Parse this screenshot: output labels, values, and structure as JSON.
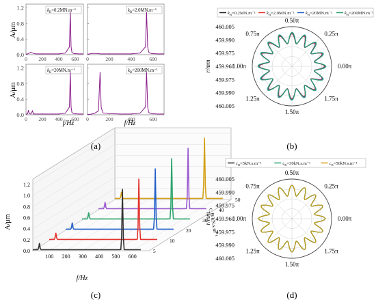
{
  "captions": {
    "a": "(a)",
    "b": "(b)",
    "c": "(c)",
    "d": "(d)"
  },
  "chart_data": [
    {
      "id": "a",
      "type": "line",
      "layout": "2x2 small multiples",
      "xlabel": "f/Hz",
      "ylabel": "A/μm",
      "xticks": [
        "0",
        "200",
        "400",
        "600"
      ],
      "yticks": [
        "0.0",
        "0.4",
        "0.8",
        "1.2"
      ],
      "xlim": [
        0,
        700
      ],
      "ylim": [
        0,
        1.3
      ],
      "color": "#8a1a8a",
      "panels": [
        {
          "label": "k_B=0.2MN.m⁻¹",
          "x": [
            0,
            20,
            40,
            60,
            80,
            120,
            200,
            300,
            400,
            480,
            530,
            540,
            550,
            560,
            580,
            640,
            700
          ],
          "y": [
            0.01,
            0.02,
            0.04,
            0.06,
            0.04,
            0.02,
            0.02,
            0.02,
            0.02,
            0.04,
            0.2,
            1.1,
            0.2,
            0.06,
            0.03,
            0.02,
            0.02
          ]
        },
        {
          "label": "k_B=2.0MN.m⁻¹",
          "x": [
            0,
            20,
            40,
            60,
            80,
            120,
            200,
            300,
            400,
            480,
            530,
            540,
            550,
            560,
            580,
            640,
            700
          ],
          "y": [
            0.01,
            0.02,
            0.03,
            0.03,
            0.03,
            0.02,
            0.02,
            0.02,
            0.02,
            0.04,
            0.2,
            1.1,
            0.2,
            0.06,
            0.03,
            0.02,
            0.02
          ]
        },
        {
          "label": "k_B=20MN.m⁻¹",
          "x": [
            0,
            20,
            30,
            40,
            60,
            80,
            90,
            120,
            200,
            300,
            400,
            480,
            530,
            540,
            550,
            560,
            580,
            640,
            700
          ],
          "y": [
            0.01,
            0.03,
            0.12,
            0.03,
            0.02,
            0.1,
            0.02,
            0.02,
            0.02,
            0.02,
            0.02,
            0.04,
            0.2,
            1.1,
            0.2,
            0.06,
            0.03,
            0.02,
            0.02
          ]
        },
        {
          "label": "k_B=200MN.m⁻¹",
          "x": [
            0,
            20,
            60,
            100,
            115,
            125,
            140,
            200,
            300,
            400,
            480,
            530,
            540,
            550,
            560,
            580,
            640,
            700
          ],
          "y": [
            0.01,
            0.01,
            0.03,
            0.1,
            1.1,
            0.2,
            0.05,
            0.03,
            0.02,
            0.02,
            0.04,
            0.2,
            1.1,
            0.2,
            0.06,
            0.03,
            0.02,
            0.02
          ]
        }
      ]
    },
    {
      "id": "b",
      "type": "polar-line",
      "rlabel": "r/mm",
      "angle_labels": [
        "0.00π",
        "0.25π",
        "0.50π",
        "0.75π",
        "1.00π",
        "1.25π",
        "1.50π",
        "1.75π"
      ],
      "r_ticks": [
        "460.005",
        "459.990",
        "459.975",
        "459.960",
        "459.975",
        "459.990",
        "460.005"
      ],
      "r_range": [
        459.955,
        460.005
      ],
      "lobes": 16,
      "series": [
        {
          "name": "k_B=0.2MN.m⁻¹",
          "color": "#222222",
          "mean": 459.99,
          "amplitude": 0.006,
          "phase": 0.0
        },
        {
          "name": "k_B=2.0MN.m⁻¹",
          "color": "#e3342f",
          "mean": 459.99,
          "amplitude": 0.0062,
          "phase": 0.02
        },
        {
          "name": "k_B=20MN.m⁻¹",
          "color": "#2460c8",
          "mean": 459.9905,
          "amplitude": 0.0065,
          "phase": 0.05
        },
        {
          "name": "k_B=200MN.m⁻¹",
          "color": "#2aa36b",
          "mean": 459.991,
          "amplitude": 0.0068,
          "phase": 0.1
        }
      ]
    },
    {
      "id": "c",
      "type": "line-3d-waterfall",
      "xlabel": "f/Hz",
      "ylabel": "A/μm",
      "zlabel": "c_B/kN.s.m⁻¹",
      "xticks": [
        "100",
        "200",
        "300",
        "400",
        "500",
        "600"
      ],
      "yticks": [
        "0.0",
        "0.2",
        "0.4",
        "0.6",
        "0.8",
        "1.0",
        "1.2"
      ],
      "zticks": [
        "5",
        "10",
        "20",
        "30",
        "40",
        "50"
      ],
      "xlim": [
        0,
        700
      ],
      "ylim": [
        0,
        1.3
      ],
      "series": [
        {
          "z": 5,
          "color": "#333333",
          "peaks": [
            [
              40,
              0.12
            ],
            [
              540,
              1.1
            ]
          ]
        },
        {
          "z": 10,
          "color": "#e3342f",
          "peaks": [
            [
              40,
              0.12
            ],
            [
              540,
              1.1
            ]
          ]
        },
        {
          "z": 20,
          "color": "#2460c8",
          "peaks": [
            [
              40,
              0.12
            ],
            [
              540,
              1.1
            ]
          ]
        },
        {
          "z": 30,
          "color": "#2aa36b",
          "peaks": [
            [
              40,
              0.12
            ],
            [
              540,
              1.1
            ]
          ]
        },
        {
          "z": 40,
          "color": "#9b59d0",
          "peaks": [
            [
              40,
              0.12
            ],
            [
              540,
              1.1
            ]
          ]
        },
        {
          "z": 50,
          "color": "#d4a017",
          "peaks": [
            [
              40,
              0.12
            ],
            [
              540,
              1.1
            ]
          ]
        }
      ]
    },
    {
      "id": "d",
      "type": "polar-line",
      "rlabel": "r/mm",
      "angle_labels": [
        "0.00π",
        "0.25π",
        "0.50π",
        "0.75π",
        "1.00π",
        "1.25π",
        "1.50π",
        "1.75π"
      ],
      "r_ticks": [
        "460.005",
        "459.990",
        "459.975",
        "459.960",
        "459.975",
        "459.990",
        "460.005"
      ],
      "r_range": [
        459.955,
        460.005
      ],
      "lobes": 16,
      "series": [
        {
          "name": "c_B=5kN.s.m⁻¹",
          "color": "#222222",
          "mean": 459.9905,
          "amplitude": 0.0065,
          "phase": 0.0
        },
        {
          "name": "c_B=30kN.s.m⁻¹",
          "color": "#2aa36b",
          "mean": 459.9905,
          "amplitude": 0.0065,
          "phase": 0.01
        },
        {
          "name": "c_B=50kN.s.m⁻¹",
          "color": "#d4a017",
          "mean": 459.9905,
          "amplitude": 0.0065,
          "phase": 0.02
        }
      ]
    }
  ]
}
